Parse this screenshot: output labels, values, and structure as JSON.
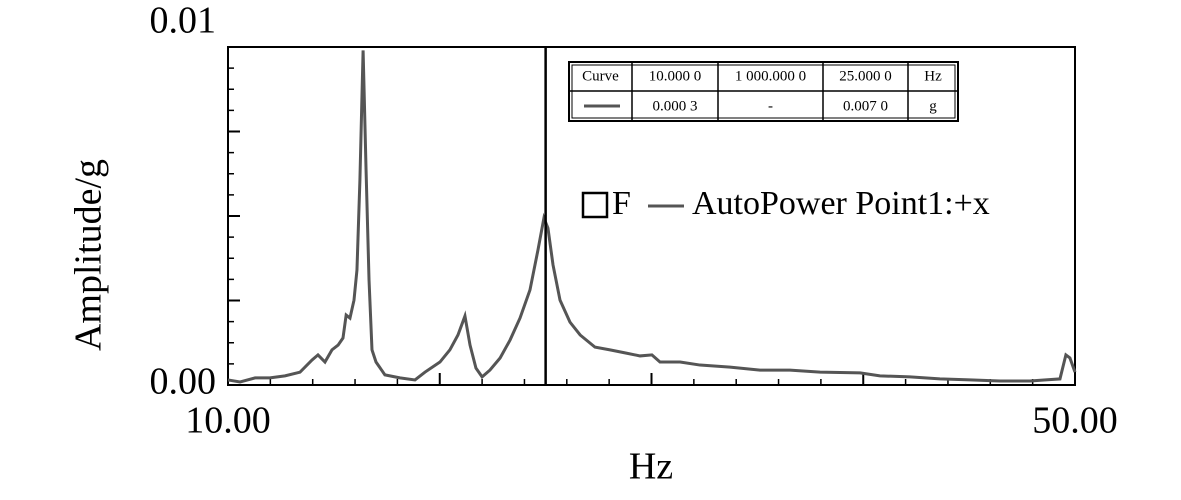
{
  "chart_data": {
    "type": "line",
    "x_label": "Hz",
    "y_label": "Amplitude/g",
    "xlim": [
      10,
      50
    ],
    "xticks": [
      {
        "value": 10,
        "label": "10.00"
      },
      {
        "value": 50,
        "label": "50.00"
      }
    ],
    "ylim": [
      0,
      0.01
    ],
    "yticks": [
      {
        "value": 0,
        "label": "0.00"
      },
      0.01
    ],
    "cursor_x": 25,
    "legend_prefix": "F",
    "series": [
      {
        "name": "AutoPower Point1:+x",
        "color": "#555555",
        "x": [
          10.0,
          10.57,
          11.28,
          11.98,
          12.69,
          13.4,
          13.97,
          14.25,
          14.58,
          14.91,
          15.2,
          15.43,
          15.58,
          15.76,
          15.95,
          16.09,
          16.23,
          16.38,
          16.52,
          16.66,
          16.8,
          16.99,
          17.41,
          18.12,
          18.83,
          19.3,
          20.01,
          20.48,
          20.86,
          21.19,
          21.43,
          21.71,
          22.0,
          22.37,
          22.85,
          23.32,
          23.79,
          24.26,
          24.64,
          24.92,
          25.11,
          25.35,
          25.68,
          26.15,
          26.63,
          27.33,
          28.04,
          28.75,
          29.46,
          30.02,
          30.4,
          31.35,
          32.29,
          33.71,
          35.12,
          36.54,
          37.96,
          39.85,
          40.79,
          42.21,
          43.62,
          45.04,
          46.46,
          47.87,
          49.29,
          49.57,
          49.76,
          50.0
        ],
        "values": [
          0.00015,
          9e-05,
          0.00021,
          0.00021,
          0.00027,
          0.00038,
          0.00074,
          0.00089,
          0.00068,
          0.00104,
          0.00118,
          0.00139,
          0.00207,
          0.00198,
          0.00251,
          0.0034,
          0.00607,
          0.0099,
          0.00636,
          0.00311,
          0.00104,
          0.00068,
          0.0003,
          0.00021,
          0.00015,
          0.00038,
          0.00068,
          0.00104,
          0.00148,
          0.00204,
          0.00118,
          0.0005,
          0.00024,
          0.00044,
          0.0008,
          0.00133,
          0.00198,
          0.00281,
          0.004,
          0.00494,
          0.00464,
          0.00355,
          0.00251,
          0.00186,
          0.00148,
          0.00112,
          0.00104,
          0.00095,
          0.00086,
          0.00089,
          0.00068,
          0.00068,
          0.00059,
          0.00053,
          0.00044,
          0.00044,
          0.00038,
          0.00036,
          0.00027,
          0.00024,
          0.00018,
          0.00015,
          0.00012,
          0.00012,
          0.00018,
          0.00089,
          0.0008,
          0.00038
        ]
      }
    ],
    "cursor_table": {
      "header": [
        "Curve",
        "10.000 0",
        "1 000.000 0",
        "25.000 0",
        "Hz"
      ],
      "row": [
        "0.000 3",
        "-",
        "0.007 0",
        "g"
      ]
    }
  }
}
